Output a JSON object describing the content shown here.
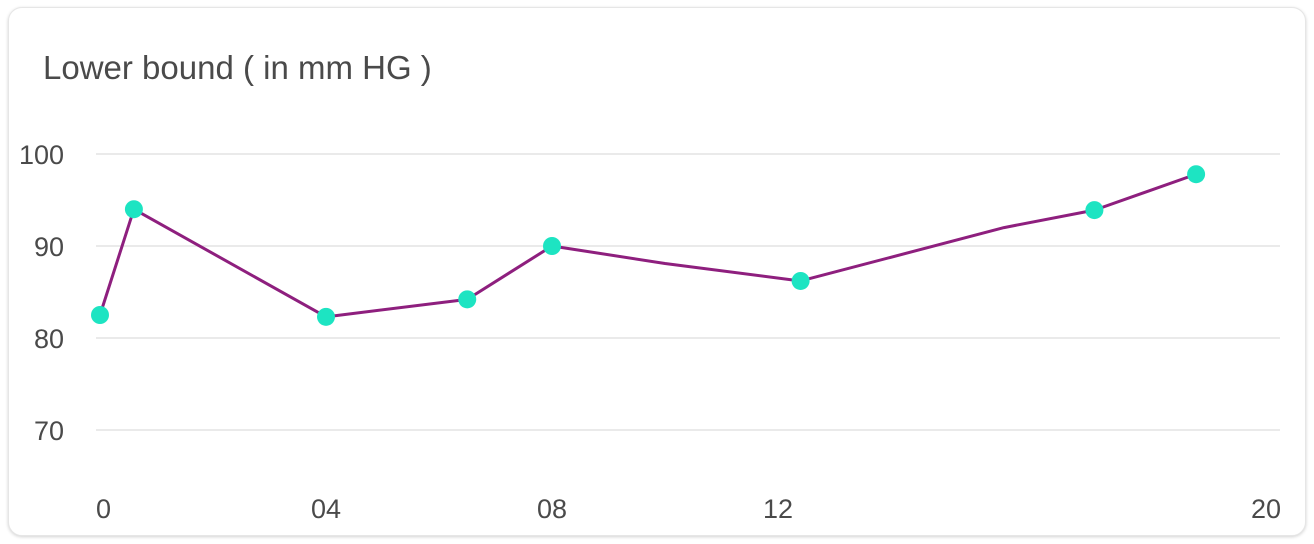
{
  "chart_data": {
    "type": "line",
    "title": "Lower bound ( in mm HG )",
    "xlabel": "",
    "ylabel": "",
    "x_ticks": [
      {
        "value": 0,
        "label": "0"
      },
      {
        "value": 4,
        "label": "04"
      },
      {
        "value": 8,
        "label": "08"
      },
      {
        "value": 12,
        "label": "12"
      },
      {
        "value": 20,
        "label": "20"
      }
    ],
    "y_ticks": [
      70,
      80,
      90,
      100
    ],
    "xlim": [
      0,
      20
    ],
    "ylim": [
      64.5,
      100
    ],
    "grid": true,
    "legend": "none",
    "series": [
      {
        "name": "Lower bound",
        "line_color": "#8e1f7e",
        "marker_color": "#1de4c2",
        "points": [
          {
            "x": 0,
            "y": 82.5,
            "marker": true
          },
          {
            "x": 0.6,
            "y": 94,
            "marker": true
          },
          {
            "x": 4,
            "y": 82.3,
            "marker": true
          },
          {
            "x": 6.5,
            "y": 84.2,
            "marker": true
          },
          {
            "x": 8,
            "y": 90,
            "marker": true
          },
          {
            "x": 10,
            "y": 88.1,
            "marker": false
          },
          {
            "x": 12.4,
            "y": 86.2,
            "marker": true
          },
          {
            "x": 16,
            "y": 92,
            "marker": false
          },
          {
            "x": 17.6,
            "y": 93.9,
            "marker": true
          },
          {
            "x": 19.4,
            "y": 97.8,
            "marker": true
          }
        ]
      }
    ]
  }
}
